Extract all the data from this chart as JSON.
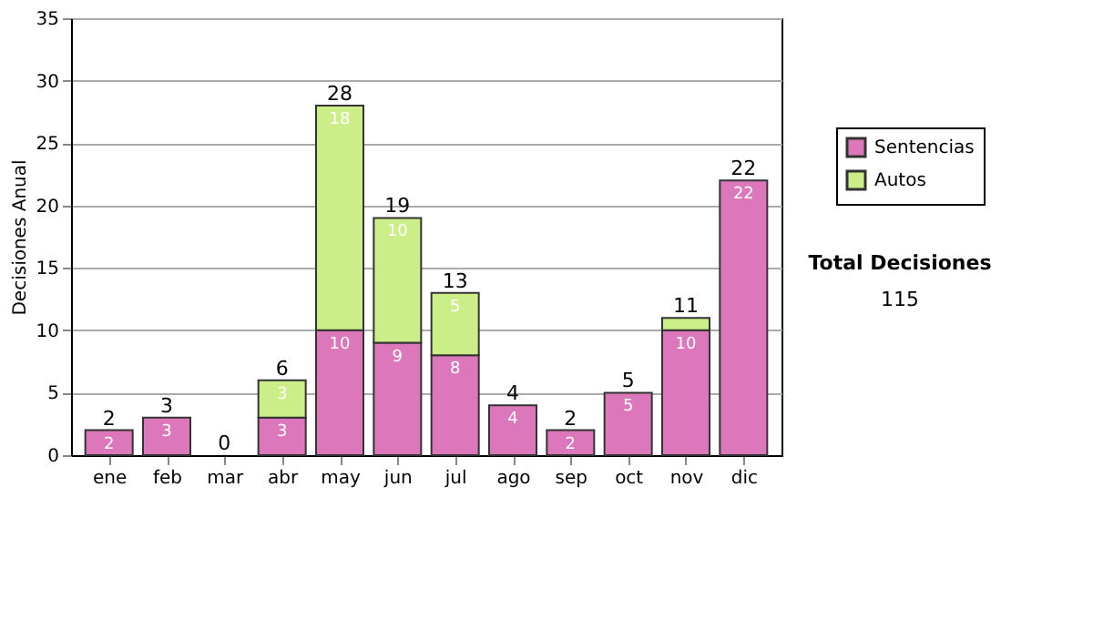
{
  "chart_data": {
    "type": "bar",
    "stacked": true,
    "ylabel": "Decisiones Anual",
    "categories": [
      "ene",
      "feb",
      "mar",
      "abr",
      "may",
      "jun",
      "jul",
      "ago",
      "sep",
      "oct",
      "nov",
      "dic"
    ],
    "series": [
      {
        "name": "Sentencias",
        "color": "#dd77bb",
        "values": [
          2,
          3,
          0,
          3,
          10,
          9,
          8,
          4,
          2,
          5,
          10,
          22
        ],
        "value_labels": [
          "2",
          "3",
          null,
          "3",
          "10",
          "9",
          "8",
          "4",
          "2",
          "5",
          "10",
          "22"
        ]
      },
      {
        "name": "Autos",
        "color": "#ccee88",
        "values": [
          0,
          0,
          0,
          3,
          18,
          10,
          5,
          0,
          0,
          0,
          1,
          0
        ],
        "value_labels": [
          null,
          null,
          null,
          "3",
          "18",
          "10",
          "5",
          null,
          null,
          null,
          null,
          null
        ]
      }
    ],
    "totals": [
      "2",
      "3",
      "0",
      "6",
      "28",
      "19",
      "13",
      "4",
      "2",
      "5",
      "11",
      "22"
    ],
    "ylim": [
      0,
      35
    ],
    "yticks": [
      0,
      5,
      10,
      15,
      20,
      25,
      30,
      35
    ],
    "grid": "y",
    "legend": "right",
    "annotations": [
      "Total Decisiones",
      "115"
    ]
  }
}
